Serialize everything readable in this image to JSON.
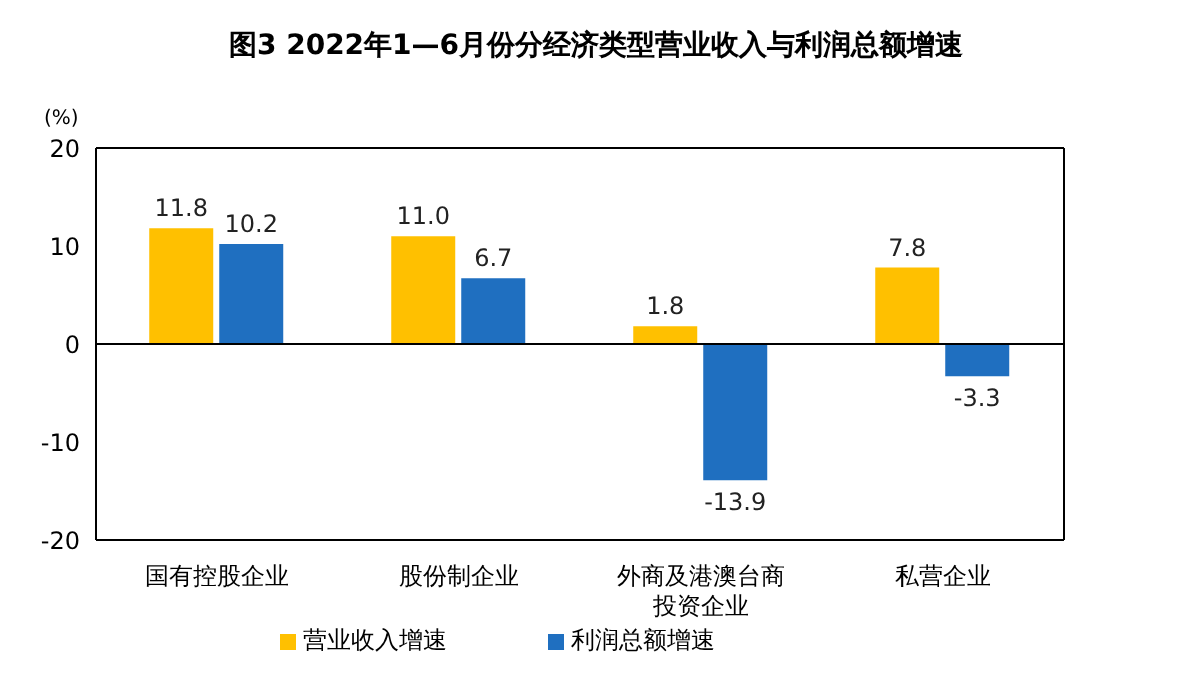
{
  "chart_data": {
    "type": "bar",
    "title": "图3  2022年1—6月份分经济类型营业收入与利润总额增速",
    "ylabel": "(%)",
    "categories": [
      "国有控股企业",
      "股份制企业",
      "外商及港澳台商投资企业",
      "私营企业"
    ],
    "series": [
      {
        "name": "营业收入增速",
        "color": "#ffc000",
        "values": [
          11.8,
          11.0,
          1.8,
          7.8
        ],
        "value_labels": [
          "11.8",
          "11.0",
          "1.8",
          "7.8"
        ]
      },
      {
        "name": "利润总额增速",
        "color": "#1f6fc0",
        "values": [
          10.2,
          6.7,
          -13.9,
          -3.3
        ],
        "value_labels": [
          "10.2",
          "6.7",
          "-13.9",
          "-3.3"
        ]
      }
    ],
    "ylim": [
      -20,
      20
    ],
    "yticks": [
      -20,
      -10,
      0,
      10,
      20
    ],
    "legend": "bottom"
  }
}
